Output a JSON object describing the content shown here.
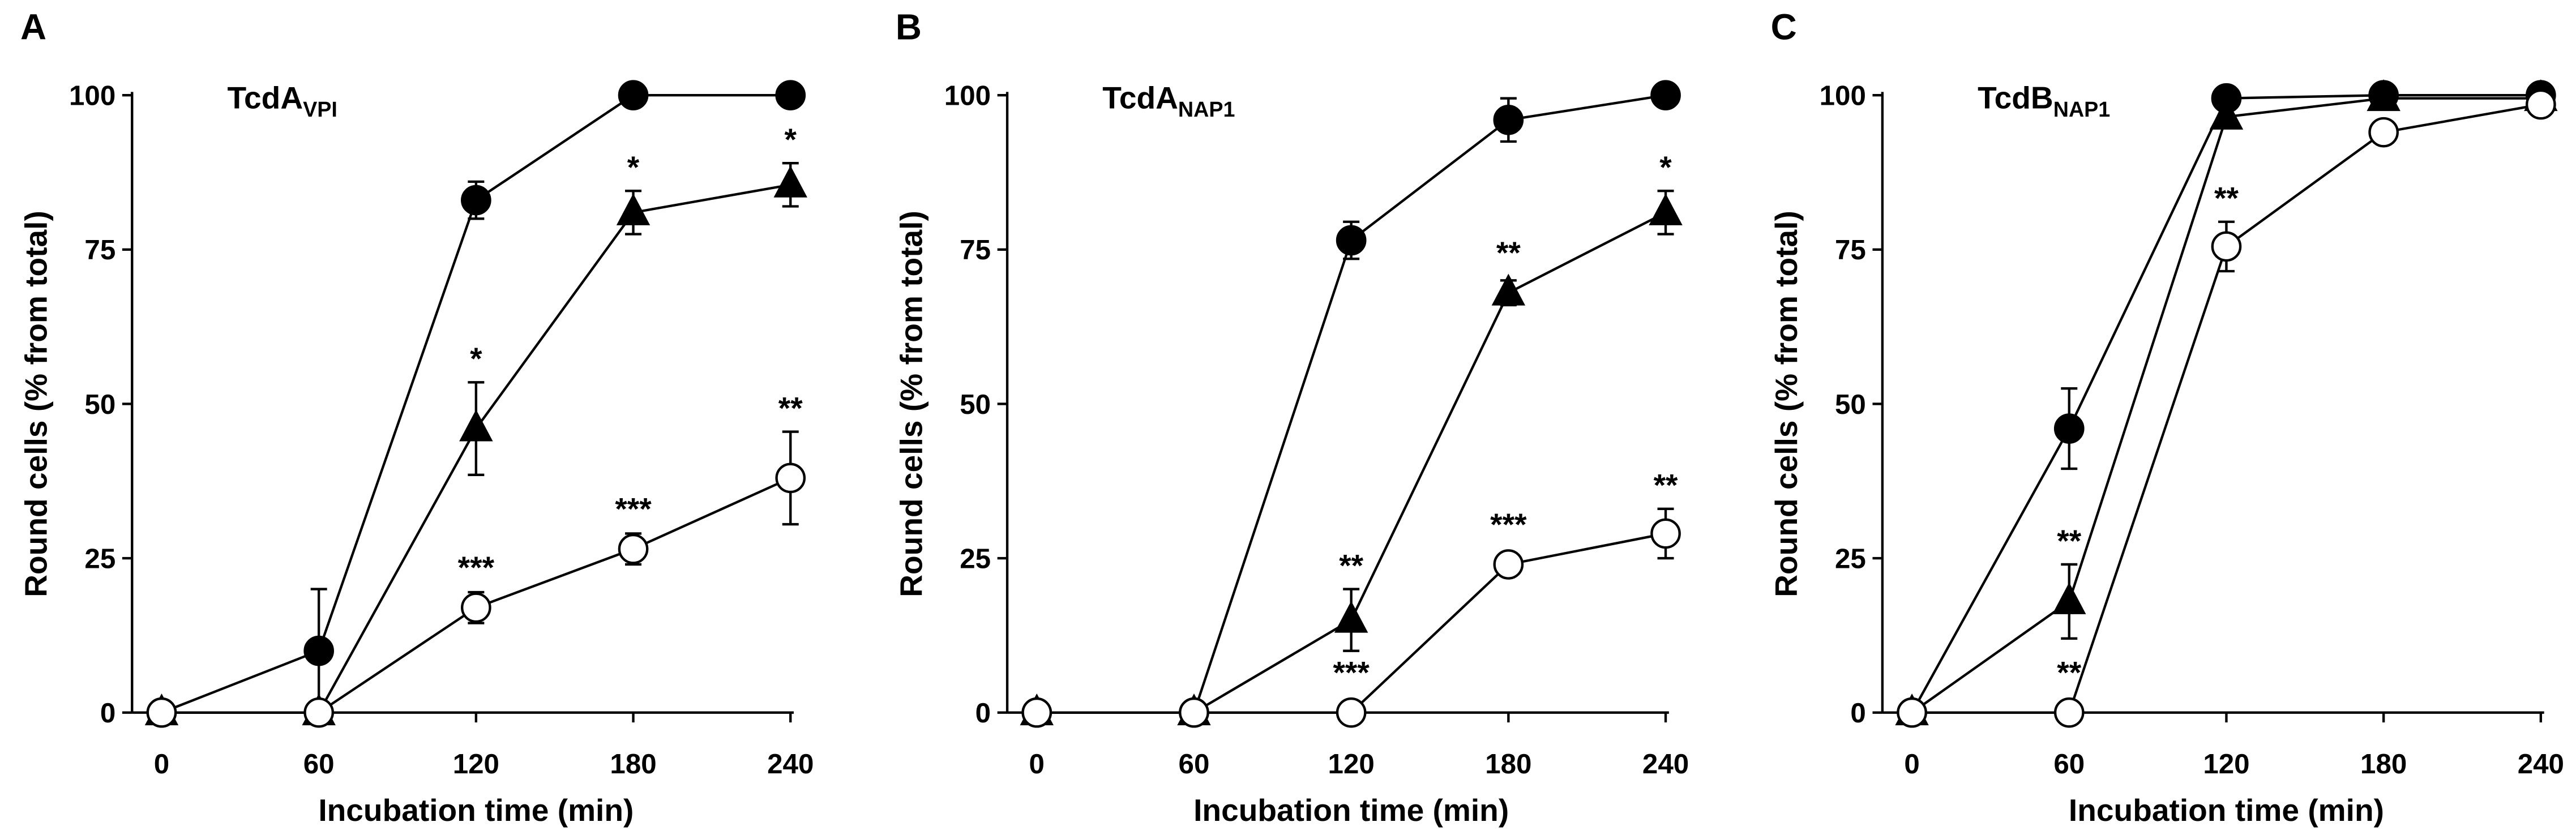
{
  "chart_data": [
    {
      "type": "line",
      "panel": "A",
      "title": "TcdA",
      "title_sub": "VPI",
      "x_label": "Incubation time (min)",
      "y_label": "Round cells (% from total)",
      "x": [
        0,
        60,
        120,
        180,
        240
      ],
      "xlim": [
        0,
        240
      ],
      "xticks": [
        0,
        60,
        120,
        180,
        240
      ],
      "ylim": [
        0,
        100
      ],
      "yticks": [
        0,
        25,
        50,
        75,
        100
      ],
      "series": [
        {
          "marker": "circle-filled",
          "color": "#000000",
          "values": [
            0,
            10,
            83,
            100,
            100
          ],
          "errors": [
            0,
            10,
            3,
            0,
            0
          ],
          "annotations": [
            null,
            null,
            null,
            null,
            null
          ]
        },
        {
          "marker": "triangle-filled",
          "color": "#000000",
          "values": [
            0,
            0,
            46,
            81,
            85.5
          ],
          "errors": [
            0,
            0,
            7.5,
            3.5,
            3.5
          ],
          "annotations": [
            null,
            null,
            "*",
            "*",
            "*"
          ]
        },
        {
          "marker": "circle-open",
          "color": "#000000",
          "values": [
            0,
            0,
            17,
            26.5,
            38
          ],
          "errors": [
            0,
            0,
            2.5,
            2.5,
            7.5
          ],
          "annotations": [
            null,
            null,
            "***",
            "***",
            "**"
          ]
        }
      ]
    },
    {
      "type": "line",
      "panel": "B",
      "title": "TcdA",
      "title_sub": "NAP1",
      "x_label": "Incubation time (min)",
      "y_label": "Round cells (% from total)",
      "x": [
        0,
        60,
        120,
        180,
        240
      ],
      "xlim": [
        0,
        240
      ],
      "xticks": [
        0,
        60,
        120,
        180,
        240
      ],
      "ylim": [
        0,
        100
      ],
      "yticks": [
        0,
        25,
        50,
        75,
        100
      ],
      "series": [
        {
          "marker": "circle-filled",
          "color": "#000000",
          "values": [
            0,
            0,
            76.5,
            96,
            100
          ],
          "errors": [
            0,
            0,
            3,
            3.5,
            0
          ],
          "annotations": [
            null,
            null,
            null,
            null,
            null
          ]
        },
        {
          "marker": "triangle-filled",
          "color": "#000000",
          "values": [
            0,
            0,
            15,
            68,
            81
          ],
          "errors": [
            0,
            0,
            5,
            2,
            3.5
          ],
          "annotations": [
            null,
            null,
            "**",
            "**",
            "*"
          ]
        },
        {
          "marker": "circle-open",
          "color": "#000000",
          "values": [
            0,
            0,
            0,
            24,
            29
          ],
          "errors": [
            0,
            0,
            0,
            1,
            4
          ],
          "annotations": [
            null,
            null,
            "***",
            "***",
            "**"
          ]
        }
      ]
    },
    {
      "type": "line",
      "panel": "C",
      "title": "TcdB",
      "title_sub": "NAP1",
      "x_label": "Incubation time (min)",
      "y_label": "Round cells (% from total)",
      "x": [
        0,
        60,
        120,
        180,
        240
      ],
      "xlim": [
        0,
        240
      ],
      "xticks": [
        0,
        60,
        120,
        180,
        240
      ],
      "ylim": [
        0,
        100
      ],
      "yticks": [
        0,
        25,
        50,
        75,
        100
      ],
      "series": [
        {
          "marker": "circle-filled",
          "color": "#000000",
          "values": [
            0,
            46,
            99.5,
            100,
            100
          ],
          "errors": [
            0,
            6.5,
            0,
            0,
            0
          ],
          "annotations": [
            null,
            null,
            null,
            null,
            null
          ]
        },
        {
          "marker": "triangle-filled",
          "color": "#000000",
          "values": [
            0,
            18,
            96.5,
            99.5,
            99.5
          ],
          "errors": [
            0,
            6,
            0,
            0,
            0
          ],
          "annotations": [
            null,
            "**",
            null,
            null,
            null
          ]
        },
        {
          "marker": "circle-open",
          "color": "#000000",
          "values": [
            0,
            0,
            75.5,
            94,
            98.5
          ],
          "errors": [
            0,
            0,
            4,
            0,
            1.5
          ],
          "annotations": [
            null,
            "**",
            "**",
            null,
            null
          ]
        }
      ]
    }
  ]
}
